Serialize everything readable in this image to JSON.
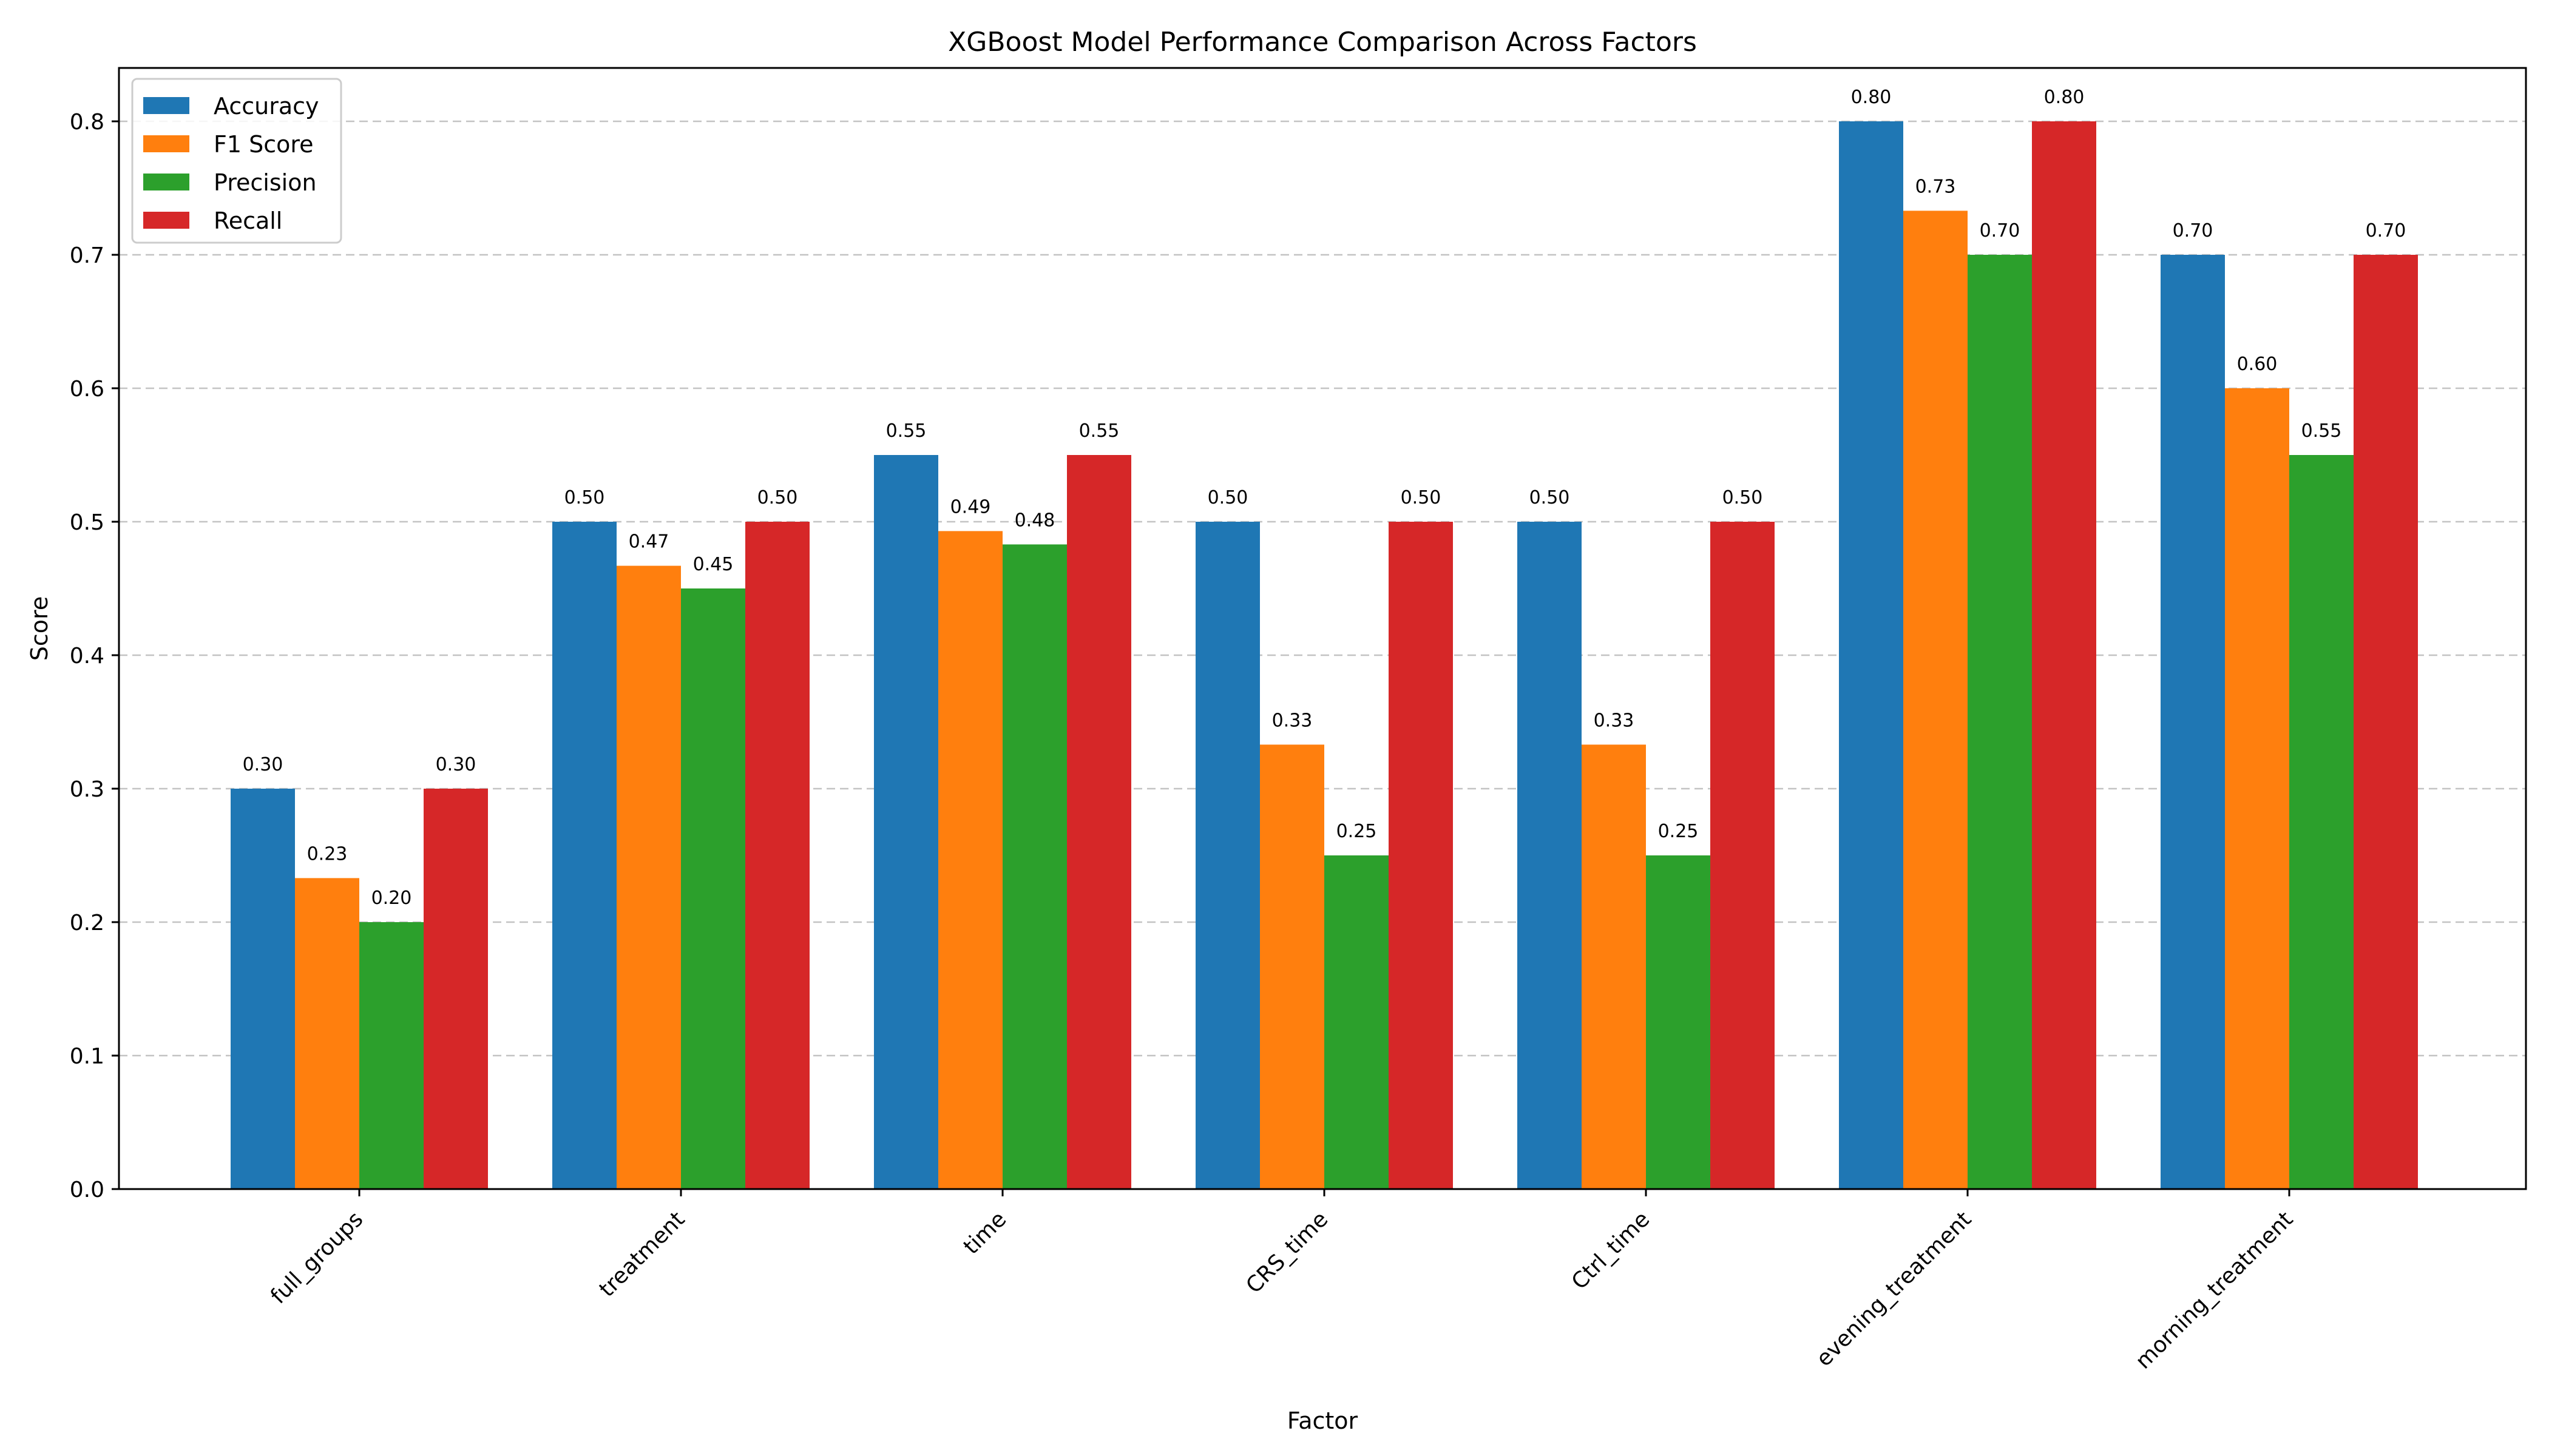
{
  "chart_data": {
    "type": "bar",
    "title": "XGBoost Model Performance Comparison Across Factors",
    "xlabel": "Factor",
    "ylabel": "Score",
    "ylim": [
      0,
      0.84
    ],
    "yticks": [
      0.0,
      0.1,
      0.2,
      0.3,
      0.4,
      0.5,
      0.6,
      0.7,
      0.8
    ],
    "ytick_labels": [
      "0.0",
      "0.1",
      "0.2",
      "0.3",
      "0.4",
      "0.5",
      "0.6",
      "0.7",
      "0.8"
    ],
    "grid": "y",
    "legend_position": "top-left",
    "categories": [
      "full_groups",
      "treatment",
      "time",
      "CRS_time",
      "Ctrl_time",
      "evening_treatment",
      "morning_treatment"
    ],
    "series": [
      {
        "name": "Accuracy",
        "color": "#1f77b4",
        "values": [
          0.3,
          0.5,
          0.55,
          0.5,
          0.5,
          0.8,
          0.7
        ],
        "labels": [
          "0.30",
          "0.50",
          "0.55",
          "0.50",
          "0.50",
          "0.80",
          "0.70"
        ]
      },
      {
        "name": "F1 Score",
        "color": "#ff7f0e",
        "values": [
          0.233,
          0.467,
          0.493,
          0.333,
          0.333,
          0.733,
          0.6
        ],
        "labels": [
          "0.23",
          "0.47",
          "0.49",
          "0.33",
          "0.33",
          "0.73",
          "0.60"
        ]
      },
      {
        "name": "Precision",
        "color": "#2ca02c",
        "values": [
          0.2,
          0.45,
          0.483,
          0.25,
          0.25,
          0.7,
          0.55
        ],
        "labels": [
          "0.20",
          "0.45",
          "0.48",
          "0.25",
          "0.25",
          "0.70",
          "0.55"
        ]
      },
      {
        "name": "Recall",
        "color": "#d62728",
        "values": [
          0.3,
          0.5,
          0.55,
          0.5,
          0.5,
          0.8,
          0.7
        ],
        "labels": [
          "0.30",
          "0.50",
          "0.55",
          "0.50",
          "0.50",
          "0.80",
          "0.70"
        ]
      }
    ]
  }
}
